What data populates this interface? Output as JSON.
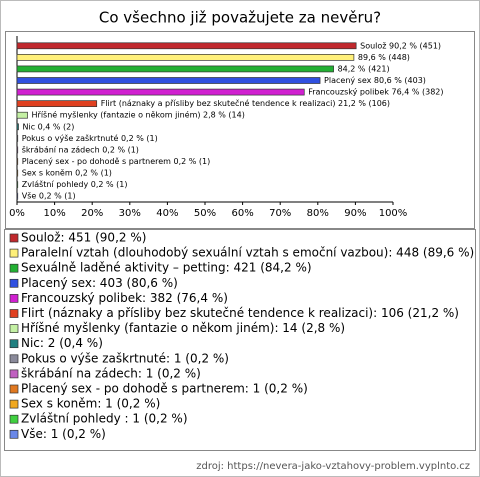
{
  "chart_data": {
    "type": "bar",
    "orientation": "horizontal",
    "title": "Co všechno již považujete za nevěru?",
    "values": [
      90.2,
      89.6,
      84.2,
      80.6,
      76.4,
      21.2,
      2.8,
      0.4,
      0.2,
      0.2,
      0.2,
      0.2,
      0.2,
      0.2
    ],
    "value_labels": [
      "Soulož 90,2 % (451)",
      "89,6 % (448)",
      "84,2 % (421)",
      "Placený sex 80,6 % (403)",
      "Francouzský polibek 76,4 % (382)",
      "Flirt (náznaky a přísliby bez skutečné tendence k realizaci) 21,2 % (106)",
      "Hříšné myšlenky (fantazie o někom jiném) 2,8 % (14)",
      "Nic 0,4 % (2)",
      "Pokus o výše zaškrtnuté 0,2 % (1)",
      "škrábání na zádech 0,2 % (1)",
      "Placený sex - po dohodě s partnerem 0,2 % (1)",
      "Sex s koněm 0,2 % (1)",
      "Zvláštní pohledy  0,2 % (1)",
      "Vše 0,2 % (1)"
    ],
    "legend_labels": [
      "Soulož: 451 (90,2 %)",
      "Paralelní vztah (dlouhodobý sexuální vztah s emoční vazbou): 448 (89,6 %)",
      "Sexuálně laděné aktivity – petting: 421 (84,2 %)",
      "Placený sex: 403 (80,6 %)",
      "Francouzský polibek: 382 (76,4 %)",
      "Flirt (náznaky a přísliby bez skutečné tendence k realizaci): 106 (21,2 %)",
      "Hříšné myšlenky (fantazie o někom jiném): 14 (2,8 %)",
      "Nic: 2 (0,4 %)",
      "Pokus o výše zaškrtnuté: 1 (0,2 %)",
      "škrábání na zádech: 1 (0,2 %)",
      "Placený sex - po dohodě s partnerem: 1 (0,2 %)",
      "Sex s koněm: 1 (0,2 %)",
      "Zvláštní pohledy : 1 (0,2 %)",
      "Vše: 1 (0,2 %)"
    ],
    "colors": [
      "#c0282d",
      "#fff07a",
      "#22b033",
      "#3050e0",
      "#d020d0",
      "#e04020",
      "#c4f0a4",
      "#208080",
      "#8a8a9a",
      "#c060c0",
      "#e07820",
      "#f0a820",
      "#40d040",
      "#6a88e8"
    ],
    "xlim": [
      0,
      100
    ],
    "xticks": [
      {
        "value": 0,
        "label": "0%"
      },
      {
        "value": 10,
        "label": "10%"
      },
      {
        "value": 20,
        "label": "20%"
      },
      {
        "value": 30,
        "label": "30%"
      },
      {
        "value": 40,
        "label": "40%"
      },
      {
        "value": 50,
        "label": "50%"
      },
      {
        "value": 60,
        "label": "60%"
      },
      {
        "value": 70,
        "label": "70%"
      },
      {
        "value": 80,
        "label": "80%"
      },
      {
        "value": 90,
        "label": "90%"
      },
      {
        "value": 100,
        "label": "100%"
      }
    ],
    "source": "zdroj: https://nevera-jako-vztahovy-problem.vyplnto.cz"
  }
}
